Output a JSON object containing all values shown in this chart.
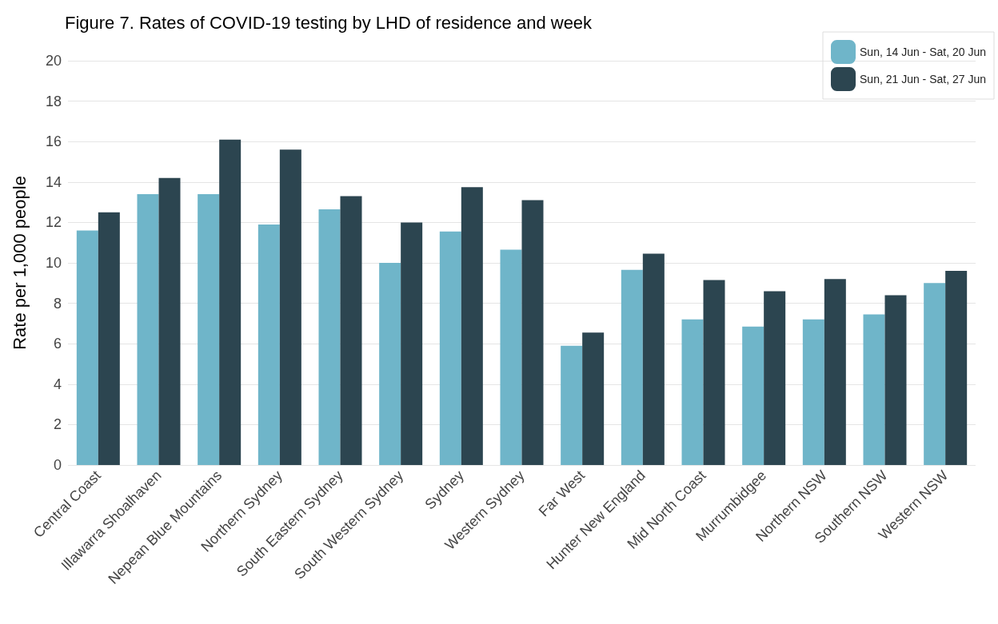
{
  "chart_data": {
    "type": "bar",
    "title": "Figure 7. Rates of COVID-19 testing by LHD of residence and week",
    "ylabel": "Rate per 1,000 people",
    "categories": [
      "Central Coast",
      "Illawarra Shoalhaven",
      "Nepean Blue Mountains",
      "Northern Sydney",
      "South Eastern Sydney",
      "South Western Sydney",
      "Sydney",
      "Western Sydney",
      "Far West",
      "Hunter New England",
      "Mid North Coast",
      "Murrumbidgee",
      "Northern NSW",
      "Southern NSW",
      "Western NSW"
    ],
    "series": [
      {
        "name": "Sun, 14 Jun - Sat, 20 Jun",
        "color": "#6fb5c9",
        "values": [
          11.6,
          13.4,
          13.4,
          11.9,
          12.65,
          10.0,
          11.55,
          10.65,
          5.9,
          9.65,
          7.2,
          6.85,
          7.2,
          7.45,
          9.0
        ]
      },
      {
        "name": "Sun, 21 Jun - Sat, 27 Jun",
        "color": "#2c4550",
        "values": [
          12.5,
          14.2,
          16.1,
          15.6,
          13.3,
          12.0,
          13.75,
          13.1,
          6.55,
          10.45,
          9.15,
          8.6,
          9.2,
          8.4,
          9.6
        ]
      }
    ],
    "ylim": [
      0,
      20
    ],
    "yticks": [
      0,
      2,
      4,
      6,
      8,
      10,
      12,
      14,
      16,
      18,
      20
    ],
    "grid": "y",
    "legend": "top right"
  }
}
